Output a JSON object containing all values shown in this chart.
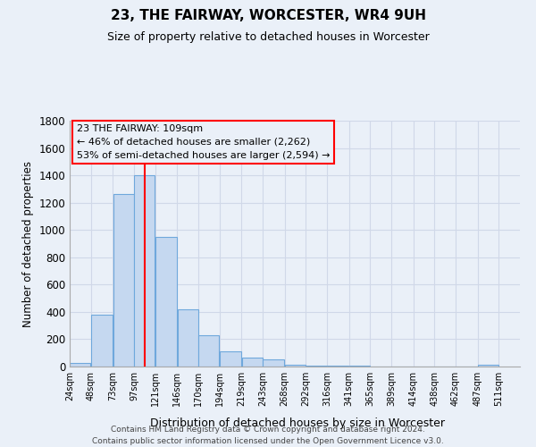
{
  "title": "23, THE FAIRWAY, WORCESTER, WR4 9UH",
  "subtitle": "Size of property relative to detached houses in Worcester",
  "xlabel": "Distribution of detached houses by size in Worcester",
  "ylabel": "Number of detached properties",
  "footer_line1": "Contains HM Land Registry data © Crown copyright and database right 2024.",
  "footer_line2": "Contains public sector information licensed under the Open Government Licence v3.0.",
  "annotation_line1": "23 THE FAIRWAY: 109sqm",
  "annotation_line2": "← 46% of detached houses are smaller (2,262)",
  "annotation_line3": "53% of semi-detached houses are larger (2,594) →",
  "bar_centers": [
    36,
    60.5,
    85,
    109,
    133.5,
    158,
    182,
    206.5,
    231,
    255.5,
    280,
    304,
    328.5,
    353,
    377,
    401.5,
    426,
    450,
    474.5,
    499
  ],
  "bar_widths": [
    24,
    25,
    24,
    24,
    25,
    24,
    24,
    25,
    24,
    25,
    24,
    24,
    25,
    24,
    24,
    25,
    24,
    24,
    25,
    24
  ],
  "bar_heights": [
    25,
    380,
    1260,
    1400,
    950,
    420,
    230,
    110,
    65,
    50,
    15,
    5,
    5,
    5,
    0,
    0,
    0,
    0,
    0,
    15
  ],
  "bar_color": "#c5d8f0",
  "bar_edge_color": "#6fa8dc",
  "red_line_x": 109,
  "ylim": [
    0,
    1800
  ],
  "yticks": [
    0,
    200,
    400,
    600,
    800,
    1000,
    1200,
    1400,
    1600,
    1800
  ],
  "xtick_positions": [
    24,
    48,
    73,
    97,
    121,
    146,
    170,
    194,
    219,
    243,
    268,
    292,
    316,
    341,
    365,
    389,
    414,
    438,
    462,
    487,
    511
  ],
  "xtick_labels": [
    "24sqm",
    "48sqm",
    "73sqm",
    "97sqm",
    "121sqm",
    "146sqm",
    "170sqm",
    "194sqm",
    "219sqm",
    "243sqm",
    "268sqm",
    "292sqm",
    "316sqm",
    "341sqm",
    "365sqm",
    "389sqm",
    "414sqm",
    "438sqm",
    "462sqm",
    "487sqm",
    "511sqm"
  ],
  "xlim_left": 24,
  "xlim_right": 535,
  "grid_color": "#d0d8e8",
  "background_color": "#eaf0f8"
}
